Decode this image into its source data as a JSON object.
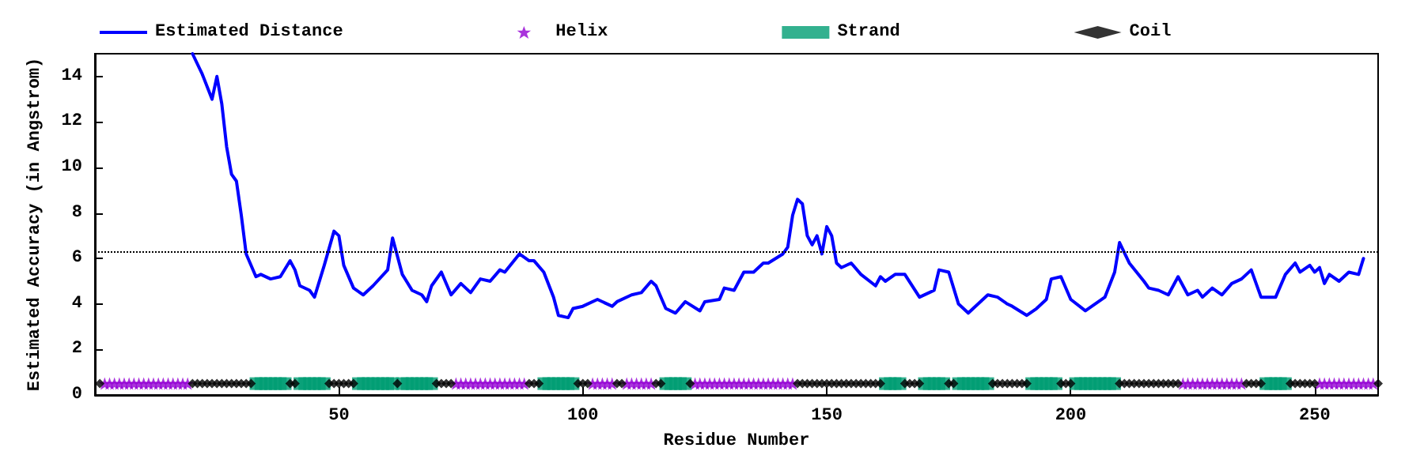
{
  "chart_data": {
    "type": "line",
    "xlabel": "Residue Number",
    "ylabel": "Estimated Accuracy (in Angstrom)",
    "xlim": [
      0,
      263
    ],
    "xticks": [
      50,
      100,
      150,
      200,
      250
    ],
    "ylim": [
      0,
      15
    ],
    "yticks": [
      0,
      2,
      4,
      6,
      8,
      10,
      12,
      14
    ],
    "legend": "top",
    "ref_lines": [
      {
        "axis": "y",
        "value": 6.3,
        "color": "#000000",
        "line_style": "dotted"
      }
    ],
    "series": [
      {
        "name": "Estimated Distance",
        "color": "#0000ff",
        "marker": "none",
        "line_style": "solid",
        "x": [
          20,
          22,
          24,
          25,
          26,
          27,
          28,
          29,
          30,
          31,
          33,
          34,
          36,
          38,
          40,
          41,
          42,
          44,
          45,
          47,
          49,
          50,
          51,
          53,
          55,
          57,
          60,
          61,
          63,
          65,
          67,
          68,
          69,
          71,
          73,
          75,
          77,
          79,
          81,
          83,
          84,
          87,
          89,
          90,
          92,
          94,
          95,
          97,
          98,
          100,
          103,
          106,
          107,
          110,
          112,
          114,
          115,
          117,
          119,
          121,
          124,
          125,
          128,
          129,
          131,
          133,
          135,
          137,
          138,
          141,
          142,
          143,
          144,
          145,
          146,
          147,
          148,
          149,
          150,
          151,
          152,
          153,
          155,
          157,
          160,
          161,
          162,
          164,
          166,
          169,
          171,
          172,
          173,
          175,
          177,
          179,
          180,
          183,
          185,
          187,
          188,
          191,
          193,
          195,
          196,
          198,
          200,
          203,
          207,
          209,
          210,
          212,
          215,
          216,
          218,
          220,
          222,
          224,
          226,
          227,
          229,
          231,
          233,
          235,
          237,
          239,
          242,
          244,
          246,
          247,
          249,
          250,
          251,
          252,
          253,
          255,
          257,
          259,
          260
        ],
        "values": [
          15.0,
          14.1,
          13.0,
          14.0,
          12.8,
          10.9,
          9.7,
          9.4,
          7.9,
          6.2,
          5.2,
          5.3,
          5.1,
          5.2,
          5.9,
          5.5,
          4.8,
          4.6,
          4.3,
          5.7,
          7.2,
          7.0,
          5.7,
          4.7,
          4.4,
          4.8,
          5.5,
          6.9,
          5.3,
          4.6,
          4.4,
          4.1,
          4.8,
          5.4,
          4.4,
          4.9,
          4.5,
          5.1,
          5.0,
          5.5,
          5.4,
          6.2,
          5.9,
          5.9,
          5.4,
          4.3,
          3.5,
          3.4,
          3.8,
          3.9,
          4.2,
          3.9,
          4.1,
          4.4,
          4.5,
          5.0,
          4.8,
          3.8,
          3.6,
          4.1,
          3.7,
          4.1,
          4.2,
          4.7,
          4.6,
          5.4,
          5.4,
          5.8,
          5.8,
          6.2,
          6.5,
          7.9,
          8.6,
          8.4,
          7.0,
          6.6,
          7.0,
          6.2,
          7.4,
          7.0,
          5.8,
          5.6,
          5.8,
          5.3,
          4.8,
          5.2,
          5.0,
          5.3,
          5.3,
          4.3,
          4.5,
          4.6,
          5.5,
          5.4,
          4.0,
          3.6,
          3.8,
          4.4,
          4.3,
          4.0,
          3.9,
          3.5,
          3.8,
          4.2,
          5.1,
          5.2,
          4.2,
          3.7,
          4.3,
          5.4,
          6.7,
          5.8,
          5.0,
          4.7,
          4.6,
          4.4,
          5.2,
          4.4,
          4.6,
          4.3,
          4.7,
          4.4,
          4.9,
          5.1,
          5.5,
          4.3,
          4.3,
          5.3,
          5.8,
          5.4,
          5.7,
          5.4,
          5.6,
          4.9,
          5.3,
          5.0,
          5.4,
          5.3,
          6.0
        ]
      },
      {
        "name": "Helix",
        "type": "scatter",
        "color": "#9400d3",
        "marker": "star",
        "x": [
          2,
          3,
          4,
          5,
          6,
          7,
          8,
          9,
          10,
          11,
          12,
          13,
          14,
          15,
          16,
          17,
          18,
          19,
          74,
          75,
          76,
          77,
          78,
          79,
          80,
          81,
          82,
          83,
          84,
          85,
          86,
          87,
          88,
          102,
          103,
          104,
          105,
          106,
          109,
          110,
          111,
          112,
          113,
          114,
          123,
          124,
          125,
          126,
          127,
          128,
          129,
          130,
          131,
          132,
          133,
          134,
          135,
          136,
          137,
          138,
          139,
          140,
          141,
          142,
          143,
          223,
          224,
          225,
          226,
          227,
          228,
          229,
          230,
          231,
          232,
          233,
          234,
          235,
          251,
          252,
          253,
          254,
          255,
          256,
          257,
          258,
          259,
          260,
          261,
          262
        ],
        "values": [
          0.5,
          0.5,
          0.5,
          0.5,
          0.5,
          0.5,
          0.5,
          0.5,
          0.5,
          0.5,
          0.5,
          0.5,
          0.5,
          0.5,
          0.5,
          0.5,
          0.5,
          0.5,
          0.5,
          0.5,
          0.5,
          0.5,
          0.5,
          0.5,
          0.5,
          0.5,
          0.5,
          0.5,
          0.5,
          0.5,
          0.5,
          0.5,
          0.5,
          0.5,
          0.5,
          0.5,
          0.5,
          0.5,
          0.5,
          0.5,
          0.5,
          0.5,
          0.5,
          0.5,
          0.5,
          0.5,
          0.5,
          0.5,
          0.5,
          0.5,
          0.5,
          0.5,
          0.5,
          0.5,
          0.5,
          0.5,
          0.5,
          0.5,
          0.5,
          0.5,
          0.5,
          0.5,
          0.5,
          0.5,
          0.5,
          0.5,
          0.5,
          0.5,
          0.5,
          0.5,
          0.5,
          0.5,
          0.5,
          0.5,
          0.5,
          0.5,
          0.5,
          0.5,
          0.5,
          0.5,
          0.5,
          0.5,
          0.5,
          0.5,
          0.5,
          0.5,
          0.5,
          0.5,
          0.5,
          0.5
        ]
      },
      {
        "name": "Strand",
        "type": "scatter",
        "color": "#009e73",
        "marker": "square",
        "x": [
          33,
          34,
          35,
          36,
          37,
          38,
          39,
          42,
          43,
          44,
          45,
          46,
          47,
          54,
          55,
          56,
          57,
          58,
          59,
          60,
          61,
          63,
          64,
          65,
          66,
          67,
          68,
          69,
          92,
          93,
          94,
          95,
          96,
          97,
          98,
          117,
          118,
          119,
          120,
          121,
          162,
          163,
          164,
          165,
          170,
          171,
          172,
          173,
          174,
          177,
          178,
          179,
          180,
          181,
          182,
          183,
          192,
          193,
          194,
          195,
          196,
          197,
          201,
          202,
          203,
          204,
          205,
          206,
          207,
          208,
          209,
          240,
          241,
          242,
          243,
          244
        ],
        "values": [
          0.5,
          0.5,
          0.5,
          0.5,
          0.5,
          0.5,
          0.5,
          0.5,
          0.5,
          0.5,
          0.5,
          0.5,
          0.5,
          0.5,
          0.5,
          0.5,
          0.5,
          0.5,
          0.5,
          0.5,
          0.5,
          0.5,
          0.5,
          0.5,
          0.5,
          0.5,
          0.5,
          0.5,
          0.5,
          0.5,
          0.5,
          0.5,
          0.5,
          0.5,
          0.5,
          0.5,
          0.5,
          0.5,
          0.5,
          0.5,
          0.5,
          0.5,
          0.5,
          0.5,
          0.5,
          0.5,
          0.5,
          0.5,
          0.5,
          0.5,
          0.5,
          0.5,
          0.5,
          0.5,
          0.5,
          0.5,
          0.5,
          0.5,
          0.5,
          0.5,
          0.5,
          0.5,
          0.5,
          0.5,
          0.5,
          0.5,
          0.5,
          0.5,
          0.5,
          0.5,
          0.5,
          0.5,
          0.5,
          0.5,
          0.5,
          0.5
        ]
      },
      {
        "name": "Coil",
        "type": "scatter",
        "color": "#000000",
        "marker": "diamond",
        "x": [
          1,
          20,
          21,
          22,
          23,
          24,
          25,
          26,
          27,
          28,
          29,
          30,
          31,
          32,
          40,
          41,
          48,
          49,
          50,
          51,
          52,
          53,
          62,
          70,
          71,
          72,
          73,
          89,
          90,
          91,
          99,
          100,
          101,
          107,
          108,
          115,
          116,
          122,
          144,
          145,
          146,
          147,
          148,
          149,
          150,
          151,
          152,
          153,
          154,
          155,
          156,
          157,
          158,
          159,
          160,
          161,
          166,
          167,
          168,
          169,
          175,
          176,
          184,
          185,
          186,
          187,
          188,
          189,
          190,
          191,
          198,
          199,
          200,
          210,
          211,
          212,
          213,
          214,
          215,
          216,
          217,
          218,
          219,
          220,
          221,
          222,
          236,
          237,
          238,
          239,
          245,
          246,
          247,
          248,
          249,
          250,
          263
        ],
        "values": [
          0.5,
          0.5,
          0.5,
          0.5,
          0.5,
          0.5,
          0.5,
          0.5,
          0.5,
          0.5,
          0.5,
          0.5,
          0.5,
          0.5,
          0.5,
          0.5,
          0.5,
          0.5,
          0.5,
          0.5,
          0.5,
          0.5,
          0.5,
          0.5,
          0.5,
          0.5,
          0.5,
          0.5,
          0.5,
          0.5,
          0.5,
          0.5,
          0.5,
          0.5,
          0.5,
          0.5,
          0.5,
          0.5,
          0.5,
          0.5,
          0.5,
          0.5,
          0.5,
          0.5,
          0.5,
          0.5,
          0.5,
          0.5,
          0.5,
          0.5,
          0.5,
          0.5,
          0.5,
          0.5,
          0.5,
          0.5,
          0.5,
          0.5,
          0.5,
          0.5,
          0.5,
          0.5,
          0.5,
          0.5,
          0.5,
          0.5,
          0.5,
          0.5,
          0.5,
          0.5,
          0.5,
          0.5,
          0.5,
          0.5,
          0.5,
          0.5,
          0.5,
          0.5,
          0.5,
          0.5,
          0.5,
          0.5,
          0.5,
          0.5,
          0.5,
          0.5,
          0.5,
          0.5,
          0.5,
          0.5,
          0.5,
          0.5,
          0.5,
          0.5,
          0.5,
          0.5,
          0.5
        ]
      }
    ]
  }
}
